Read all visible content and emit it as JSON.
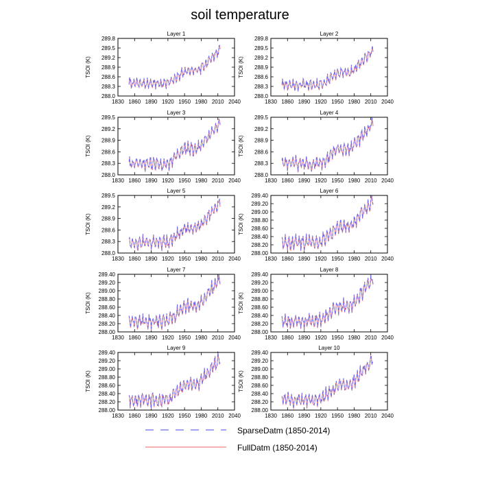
{
  "title": "soil temperature",
  "legend": [
    {
      "label": "SparseDatm (1850-2014)",
      "color": "#6a6af0",
      "style": "dashed"
    },
    {
      "label": "FullDatm (1850-2014)",
      "color": "#f08080",
      "style": "solid"
    }
  ],
  "chart_data": [
    {
      "type": "line",
      "title": "Layer 1",
      "ylabel": "TSOI  (K)",
      "xlim": [
        1830,
        2040
      ],
      "ylim": [
        288.0,
        289.8
      ],
      "xticks": [
        1830,
        1860,
        1890,
        1920,
        1950,
        1980,
        2010,
        2040
      ],
      "yticks": [
        "288.0",
        "288.3",
        "288.6",
        "288.9",
        "289.2",
        "289.5",
        "289.8"
      ],
      "base": 288.4,
      "warm": 1.0
    },
    {
      "type": "line",
      "title": "Layer 2",
      "ylabel": "TSOI  (K)",
      "xlim": [
        1830,
        2040
      ],
      "ylim": [
        288.0,
        289.8
      ],
      "xticks": [
        1830,
        1860,
        1890,
        1920,
        1950,
        1980,
        2010,
        2040
      ],
      "yticks": [
        "288.0",
        "288.3",
        "288.6",
        "288.9",
        "289.2",
        "289.5",
        "289.8"
      ],
      "base": 288.35,
      "warm": 1.0
    },
    {
      "type": "line",
      "title": "Layer 3",
      "ylabel": "TSOI  (K)",
      "xlim": [
        1830,
        2040
      ],
      "ylim": [
        288.0,
        289.5
      ],
      "xticks": [
        1830,
        1860,
        1890,
        1920,
        1950,
        1980,
        2010,
        2040
      ],
      "yticks": [
        "288.0",
        "288.3",
        "288.6",
        "288.9",
        "289.2",
        "289.5"
      ],
      "base": 288.3,
      "warm": 1.0
    },
    {
      "type": "line",
      "title": "Layer 4",
      "ylabel": "TSOI  (K)",
      "xlim": [
        1830,
        2040
      ],
      "ylim": [
        288.0,
        289.5
      ],
      "xticks": [
        1830,
        1860,
        1890,
        1920,
        1950,
        1980,
        2010,
        2040
      ],
      "yticks": [
        "288.0",
        "288.3",
        "288.6",
        "288.9",
        "289.2",
        "289.5"
      ],
      "base": 288.3,
      "warm": 1.0
    },
    {
      "type": "line",
      "title": "Layer 5",
      "ylabel": "TSOI  (K)",
      "xlim": [
        1830,
        2040
      ],
      "ylim": [
        288.0,
        289.5
      ],
      "xticks": [
        1830,
        1860,
        1890,
        1920,
        1950,
        1980,
        2010,
        2040
      ],
      "yticks": [
        "288.0",
        "288.3",
        "288.6",
        "288.9",
        "289.2",
        "289.5"
      ],
      "base": 288.28,
      "warm": 0.98
    },
    {
      "type": "line",
      "title": "Layer 6",
      "ylabel": "TSOI  (K)",
      "xlim": [
        1830,
        2040
      ],
      "ylim": [
        288.0,
        289.4
      ],
      "xticks": [
        1830,
        1860,
        1890,
        1920,
        1950,
        1980,
        2010,
        2040
      ],
      "yticks": [
        "288.00",
        "288.20",
        "288.40",
        "288.60",
        "288.80",
        "289.00",
        "289.20",
        "289.40"
      ],
      "base": 288.27,
      "warm": 0.97
    },
    {
      "type": "line",
      "title": "Layer 7",
      "ylabel": "TSOI  (K)",
      "xlim": [
        1830,
        2040
      ],
      "ylim": [
        288.0,
        289.4
      ],
      "xticks": [
        1830,
        1860,
        1890,
        1920,
        1950,
        1980,
        2010,
        2040
      ],
      "yticks": [
        "288.00",
        "288.20",
        "288.40",
        "288.60",
        "288.80",
        "289.00",
        "289.20",
        "289.40"
      ],
      "base": 288.27,
      "warm": 0.96
    },
    {
      "type": "line",
      "title": "Layer 8",
      "ylabel": "TSOI  (K)",
      "xlim": [
        1830,
        2040
      ],
      "ylim": [
        288.0,
        289.4
      ],
      "xticks": [
        1830,
        1860,
        1890,
        1920,
        1950,
        1980,
        2010,
        2040
      ],
      "yticks": [
        "288.00",
        "288.20",
        "288.40",
        "288.60",
        "288.80",
        "289.00",
        "289.20",
        "289.40"
      ],
      "base": 288.27,
      "warm": 0.95
    },
    {
      "type": "line",
      "title": "Layer 9",
      "ylabel": "TSOI  (K)",
      "xlim": [
        1830,
        2040
      ],
      "ylim": [
        288.0,
        289.4
      ],
      "xticks": [
        1830,
        1860,
        1890,
        1920,
        1950,
        1980,
        2010,
        2040
      ],
      "yticks": [
        "288.00",
        "288.20",
        "288.40",
        "288.60",
        "288.80",
        "289.00",
        "289.20",
        "289.40"
      ],
      "base": 288.26,
      "warm": 0.94
    },
    {
      "type": "line",
      "title": "Layer 10",
      "ylabel": "TSOI  (K)",
      "xlim": [
        1830,
        2040
      ],
      "ylim": [
        288.0,
        289.4
      ],
      "xticks": [
        1830,
        1860,
        1890,
        1920,
        1950,
        1980,
        2010,
        2040
      ],
      "yticks": [
        "288.00",
        "288.20",
        "288.40",
        "288.60",
        "288.80",
        "289.00",
        "289.20",
        "289.40"
      ],
      "base": 288.26,
      "warm": 0.93
    }
  ]
}
